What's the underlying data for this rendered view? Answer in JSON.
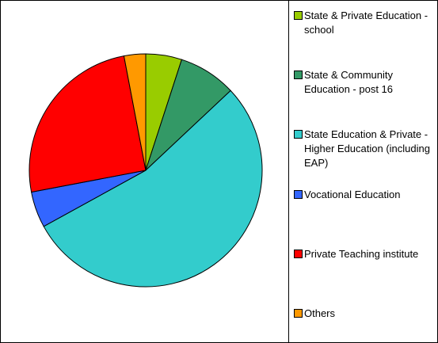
{
  "chart_data": {
    "type": "pie",
    "categories": [
      "State & Private Education - school",
      "State & Community Education - post 16",
      "State Education & Private - Higher Education (including EAP)",
      "Vocational Education",
      "Private Teaching institute",
      "Others"
    ],
    "values": [
      5,
      8,
      54,
      5,
      25,
      3
    ],
    "colors": [
      "#99cc00",
      "#339966",
      "#33cccc",
      "#3366ff",
      "#ff0000",
      "#ff9900"
    ],
    "legend": "right"
  }
}
